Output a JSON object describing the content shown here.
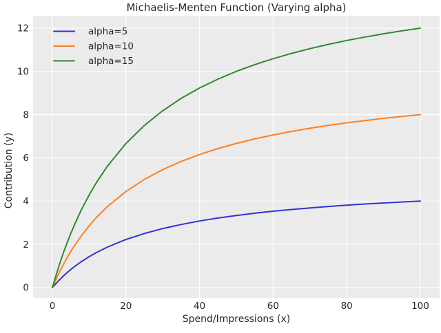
{
  "chart_data": {
    "type": "line",
    "title": "Michaelis-Menten Function (Varying alpha)",
    "xlabel": "Spend/Impressions (x)",
    "ylabel": "Contribution (y)",
    "x": [
      0,
      1,
      2,
      3,
      4,
      5,
      6,
      8,
      10,
      12,
      15,
      20,
      25,
      30,
      35,
      40,
      45,
      50,
      55,
      60,
      65,
      70,
      75,
      80,
      85,
      90,
      95,
      100
    ],
    "series": [
      {
        "name": "alpha=5",
        "color": "#3232d7",
        "values": [
          0,
          0.192,
          0.37,
          0.536,
          0.69,
          0.833,
          0.968,
          1.212,
          1.429,
          1.622,
          1.875,
          2.222,
          2.5,
          2.727,
          2.917,
          3.077,
          3.214,
          3.333,
          3.438,
          3.529,
          3.611,
          3.684,
          3.75,
          3.81,
          3.864,
          3.913,
          3.958,
          4.0
        ]
      },
      {
        "name": "alpha=10",
        "color": "#ff7f1e",
        "values": [
          0,
          0.385,
          0.741,
          1.071,
          1.379,
          1.667,
          1.935,
          2.424,
          2.857,
          3.243,
          3.75,
          4.444,
          5.0,
          5.455,
          5.833,
          6.154,
          6.429,
          6.667,
          6.875,
          7.059,
          7.222,
          7.368,
          7.5,
          7.619,
          7.727,
          7.826,
          7.917,
          8.0
        ]
      },
      {
        "name": "alpha=15",
        "color": "#2c8a2c",
        "values": [
          0,
          0.577,
          1.111,
          1.607,
          2.069,
          2.5,
          2.903,
          3.636,
          4.286,
          4.865,
          5.625,
          6.667,
          7.5,
          8.182,
          8.75,
          9.231,
          9.643,
          10.0,
          10.313,
          10.588,
          10.833,
          11.053,
          11.25,
          11.429,
          11.591,
          11.739,
          11.875,
          12.0
        ]
      }
    ],
    "xticks": [
      0,
      20,
      40,
      60,
      80,
      100
    ],
    "yticks": [
      0,
      2,
      4,
      6,
      8,
      10,
      12
    ],
    "xlim": [
      -5.25,
      105.25
    ],
    "ylim": [
      -0.48,
      12.57
    ],
    "grid": true,
    "grid_color": "#ffffff",
    "plot_bg": "#ebebeb",
    "figure_bg": "#ffffff",
    "legend_position": "upper left"
  }
}
